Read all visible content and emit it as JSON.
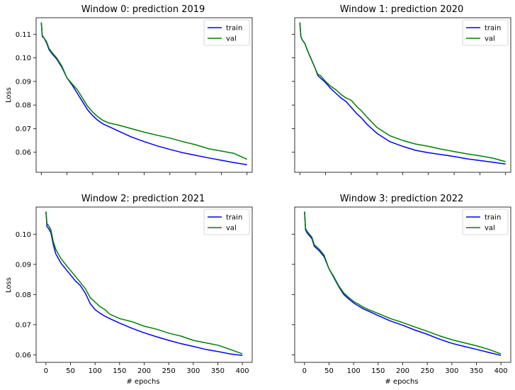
{
  "chart_data": [
    {
      "type": "line",
      "title": "Window 0: prediction 2019",
      "xlabel": "",
      "ylabel": "Loss",
      "xlim": [
        -10,
        410
      ],
      "ylim": [
        0.0515,
        0.117
      ],
      "xticks": [
        0,
        50,
        100,
        150,
        200,
        250,
        300,
        350,
        400
      ],
      "yticks": [
        0.06,
        0.07,
        0.08,
        0.09,
        0.1,
        0.11
      ],
      "show_xtick_labels": false,
      "show_ytick_labels": true,
      "legend": "top-right",
      "grid": false,
      "series": [
        {
          "name": "train",
          "color": "#0000ff",
          "x": [
            0,
            2,
            5,
            10,
            15,
            20,
            30,
            40,
            50,
            60,
            70,
            80,
            90,
            100,
            110,
            120,
            130,
            150,
            175,
            200,
            225,
            250,
            275,
            300,
            325,
            350,
            375,
            400
          ],
          "y": [
            0.115,
            0.109,
            0.1085,
            0.1065,
            0.1035,
            0.102,
            0.0995,
            0.096,
            0.0915,
            0.0885,
            0.085,
            0.0815,
            0.078,
            0.0755,
            0.0735,
            0.072,
            0.071,
            0.069,
            0.0665,
            0.0645,
            0.0627,
            0.0612,
            0.0598,
            0.0587,
            0.0576,
            0.0566,
            0.0556,
            0.0547
          ]
        },
        {
          "name": "val",
          "color": "#008000",
          "x": [
            0,
            2,
            5,
            10,
            15,
            20,
            30,
            40,
            50,
            60,
            70,
            80,
            90,
            100,
            110,
            120,
            130,
            150,
            175,
            200,
            225,
            250,
            275,
            300,
            325,
            350,
            375,
            400
          ],
          "y": [
            0.115,
            0.1095,
            0.1085,
            0.107,
            0.104,
            0.1025,
            0.1,
            0.0965,
            0.0915,
            0.089,
            0.0865,
            0.083,
            0.0795,
            0.077,
            0.075,
            0.0735,
            0.0725,
            0.0715,
            0.07,
            0.0685,
            0.0672,
            0.066,
            0.0645,
            0.0632,
            0.0615,
            0.0605,
            0.0595,
            0.057
          ]
        }
      ]
    },
    {
      "type": "line",
      "title": "Window 1: prediction 2020",
      "xlabel": "",
      "ylabel": "",
      "xlim": [
        -10,
        410
      ],
      "ylim": [
        0.0515,
        0.117
      ],
      "xticks": [
        0,
        50,
        100,
        150,
        200,
        250,
        300,
        350,
        400
      ],
      "yticks": [
        0.06,
        0.07,
        0.08,
        0.09,
        0.1,
        0.11
      ],
      "show_xtick_labels": false,
      "show_ytick_labels": false,
      "legend": "top-right",
      "grid": false,
      "series": [
        {
          "name": "train",
          "color": "#0000ff",
          "x": [
            0,
            2,
            5,
            10,
            15,
            20,
            25,
            30,
            35,
            40,
            50,
            60,
            70,
            80,
            90,
            100,
            110,
            120,
            130,
            150,
            175,
            200,
            225,
            250,
            275,
            300,
            325,
            350,
            375,
            400
          ],
          "y": [
            0.115,
            0.109,
            0.1075,
            0.106,
            0.103,
            0.1005,
            0.098,
            0.0955,
            0.0925,
            0.0915,
            0.0895,
            0.087,
            0.085,
            0.083,
            0.0815,
            0.079,
            0.0765,
            0.0745,
            0.072,
            0.068,
            0.0645,
            0.0625,
            0.0608,
            0.0598,
            0.059,
            0.0582,
            0.0572,
            0.0565,
            0.0558,
            0.055
          ]
        },
        {
          "name": "val",
          "color": "#008000",
          "x": [
            0,
            2,
            5,
            10,
            15,
            20,
            25,
            30,
            35,
            40,
            50,
            60,
            70,
            80,
            90,
            100,
            110,
            120,
            130,
            150,
            175,
            200,
            225,
            250,
            275,
            300,
            325,
            350,
            375,
            400
          ],
          "y": [
            0.115,
            0.109,
            0.1075,
            0.106,
            0.103,
            0.1005,
            0.098,
            0.0955,
            0.093,
            0.0925,
            0.09,
            0.088,
            0.0865,
            0.0845,
            0.083,
            0.082,
            0.0795,
            0.0775,
            0.075,
            0.0705,
            0.067,
            0.065,
            0.0635,
            0.0625,
            0.0613,
            0.0603,
            0.0593,
            0.0585,
            0.0575,
            0.056
          ]
        }
      ]
    },
    {
      "type": "line",
      "title": "Window 2: prediction 2021",
      "xlabel": "# epochs",
      "ylabel": "Loss",
      "xlim": [
        -20,
        420
      ],
      "ylim": [
        0.0575,
        0.109
      ],
      "xticks": [
        0,
        50,
        100,
        150,
        200,
        250,
        300,
        350,
        400
      ],
      "yticks": [
        0.06,
        0.07,
        0.08,
        0.09,
        0.1
      ],
      "show_xtick_labels": true,
      "show_ytick_labels": true,
      "legend": "top-right",
      "grid": false,
      "series": [
        {
          "name": "train",
          "color": "#0000ff",
          "x": [
            0,
            2,
            5,
            10,
            15,
            20,
            30,
            40,
            50,
            60,
            70,
            80,
            90,
            100,
            110,
            120,
            130,
            150,
            175,
            200,
            225,
            250,
            275,
            300,
            325,
            350,
            375,
            400
          ],
          "y": [
            0.1075,
            0.1025,
            0.102,
            0.1005,
            0.0965,
            0.0935,
            0.0905,
            0.0885,
            0.0865,
            0.0845,
            0.083,
            0.0805,
            0.077,
            0.075,
            0.0738,
            0.0728,
            0.072,
            0.0705,
            0.0688,
            0.0673,
            0.066,
            0.0648,
            0.0637,
            0.0628,
            0.0618,
            0.0611,
            0.0603,
            0.0598
          ]
        },
        {
          "name": "val",
          "color": "#008000",
          "x": [
            0,
            2,
            5,
            10,
            15,
            20,
            30,
            40,
            50,
            60,
            70,
            80,
            90,
            100,
            110,
            120,
            130,
            150,
            175,
            200,
            225,
            250,
            275,
            300,
            325,
            350,
            375,
            400
          ],
          "y": [
            0.1075,
            0.1035,
            0.103,
            0.1015,
            0.0975,
            0.095,
            0.092,
            0.09,
            0.088,
            0.086,
            0.084,
            0.082,
            0.079,
            0.0775,
            0.076,
            0.075,
            0.0735,
            0.072,
            0.071,
            0.0695,
            0.0685,
            0.0672,
            0.0662,
            0.0648,
            0.064,
            0.0632,
            0.0618,
            0.0603
          ]
        }
      ]
    },
    {
      "type": "line",
      "title": "Window 3: prediction 2022",
      "xlabel": "# epochs",
      "ylabel": "",
      "xlim": [
        -20,
        420
      ],
      "ylim": [
        0.0575,
        0.109
      ],
      "xticks": [
        0,
        50,
        100,
        150,
        200,
        250,
        300,
        350,
        400
      ],
      "yticks": [
        0.06,
        0.07,
        0.08,
        0.09,
        0.1
      ],
      "show_xtick_labels": true,
      "show_ytick_labels": false,
      "legend": "top-right",
      "grid": false,
      "series": [
        {
          "name": "train",
          "color": "#0000ff",
          "x": [
            0,
            2,
            5,
            10,
            15,
            20,
            30,
            40,
            50,
            60,
            70,
            80,
            90,
            100,
            110,
            120,
            130,
            150,
            175,
            200,
            225,
            250,
            275,
            300,
            325,
            350,
            375,
            400
          ],
          "y": [
            0.1075,
            0.1015,
            0.1005,
            0.0995,
            0.0985,
            0.096,
            0.0945,
            0.0925,
            0.0885,
            0.0855,
            0.0825,
            0.08,
            0.0785,
            0.0772,
            0.0762,
            0.0752,
            0.0745,
            0.073,
            0.0712,
            0.0698,
            0.0682,
            0.0668,
            0.0652,
            0.0638,
            0.0628,
            0.0618,
            0.0608,
            0.0598
          ]
        },
        {
          "name": "val",
          "color": "#008000",
          "x": [
            0,
            2,
            5,
            10,
            15,
            20,
            30,
            40,
            50,
            60,
            70,
            80,
            90,
            100,
            110,
            120,
            130,
            150,
            175,
            200,
            225,
            250,
            275,
            300,
            325,
            350,
            375,
            400
          ],
          "y": [
            0.1075,
            0.102,
            0.101,
            0.1,
            0.099,
            0.0965,
            0.095,
            0.093,
            0.0885,
            0.0858,
            0.0828,
            0.0805,
            0.079,
            0.0777,
            0.0768,
            0.0758,
            0.075,
            0.0737,
            0.072,
            0.0707,
            0.0692,
            0.0678,
            0.0663,
            0.065,
            0.064,
            0.063,
            0.0618,
            0.0603
          ]
        }
      ]
    }
  ]
}
